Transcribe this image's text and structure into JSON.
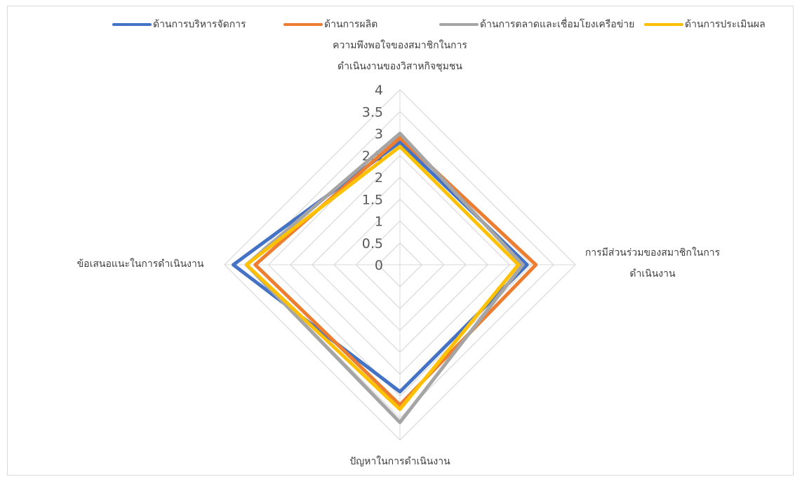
{
  "chart_data": {
    "type": "radar",
    "categories": [
      "ความพึงพอใจของสมาชิกในการดำเนินงานของวิสาหกิจชุมชน",
      "การมีส่วนร่วมของสมาชิกในการดำเนินงาน",
      "ปัญหาในการดำเนินงาน",
      "ข้อเสนอแนะในการดำเนินงาน"
    ],
    "category_lines": [
      [
        "ความพึงพอใจของสมาชิกในการ",
        "ดำเนินงานของวิสาหกิจชุมชน"
      ],
      [
        "การมีส่วนร่วมของสมาชิกในการ",
        "ดำเนินงาน"
      ],
      [
        "ปัญหาในการดำเนินงาน"
      ],
      [
        "ข้อเสนอแนะในการดำเนินงาน"
      ]
    ],
    "series": [
      {
        "name": "ด้านการบริหารจัดการ",
        "color": "#4472C4",
        "values": [
          2.8,
          2.9,
          2.9,
          3.8
        ]
      },
      {
        "name": "ด้านการผลิต",
        "color": "#ED7D31",
        "values": [
          2.9,
          3.1,
          3.2,
          3.3
        ]
      },
      {
        "name": "ด้านการตลาดและเชื่อมโยงเครือข่าย",
        "color": "#A5A5A5",
        "values": [
          3.0,
          2.8,
          3.6,
          3.5
        ]
      },
      {
        "name": "ด้านการประเมินผล",
        "color": "#FFC000",
        "values": [
          2.7,
          2.7,
          3.3,
          3.5
        ]
      }
    ],
    "rlim": [
      0,
      4
    ],
    "ticks": [
      "0",
      "0.5",
      "1",
      "1.5",
      "2",
      "2.5",
      "3",
      "3.5",
      "4"
    ],
    "grid": true,
    "legend_position": "top"
  }
}
